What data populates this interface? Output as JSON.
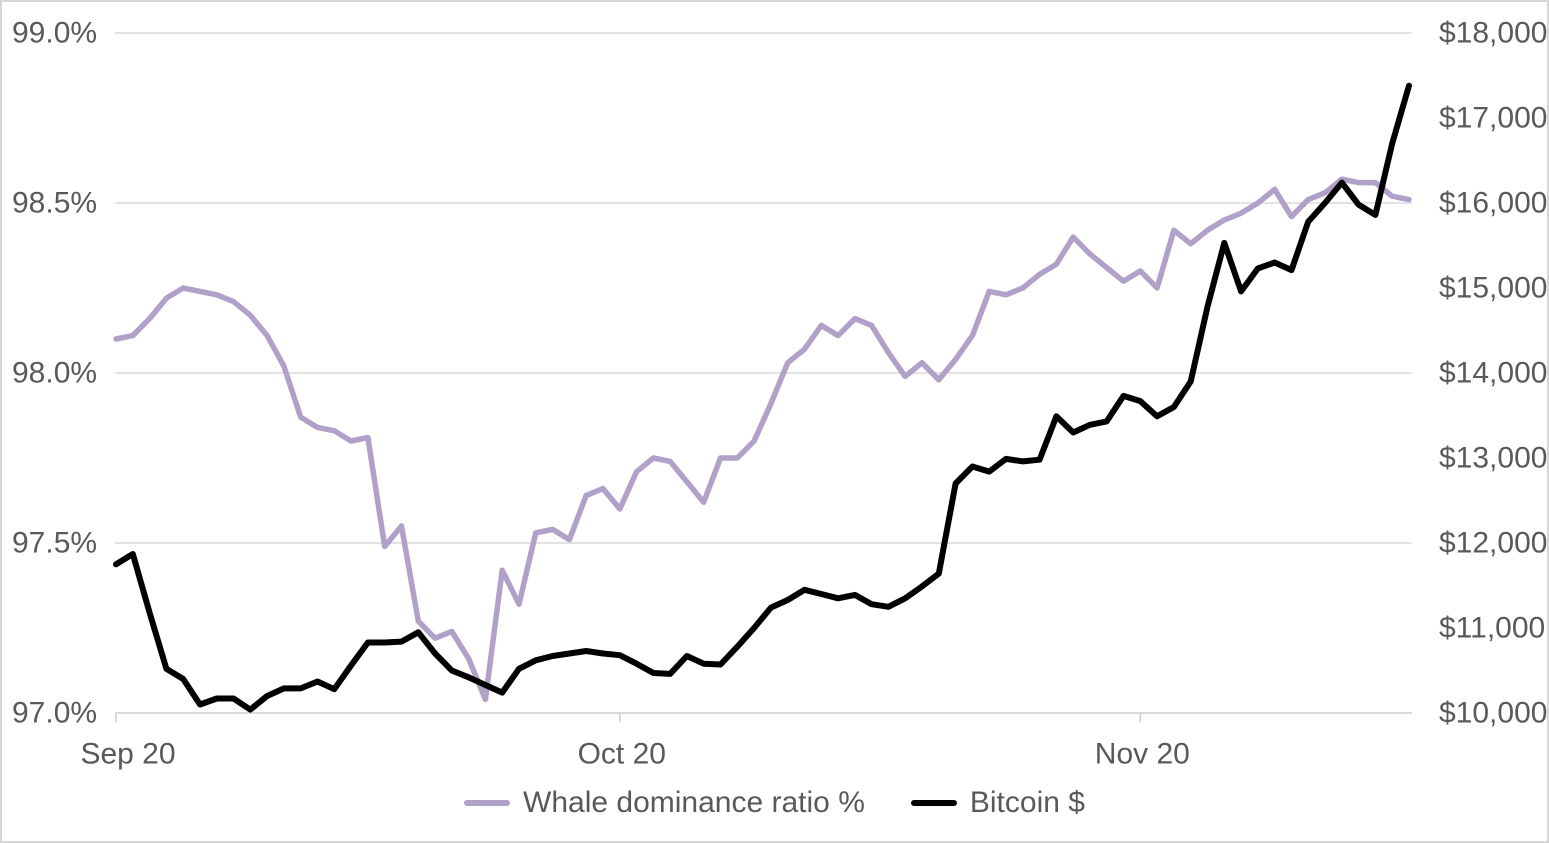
{
  "chart_data": {
    "type": "line",
    "title": "",
    "x_axis": {
      "tick_labels": [
        "Sep 20",
        "Oct 20",
        "Nov 20"
      ],
      "tick_day_index": [
        0,
        30,
        61
      ],
      "points_count": 78
    },
    "y_axis_left": {
      "unit": "%",
      "min": 97.0,
      "max": 99.0,
      "tick_labels": [
        "99.0%",
        "98.5%",
        "98.0%",
        "97.5%",
        "97.0%"
      ],
      "tick_values": [
        99.0,
        98.5,
        98.0,
        97.5,
        97.0
      ]
    },
    "y_axis_right": {
      "unit": "$",
      "min": 10000,
      "max": 18000,
      "tick_labels": [
        "$18,000",
        "$17,000",
        "$16,000",
        "$15,000",
        "$14,000",
        "$13,000",
        "$12,000",
        "$11,000",
        "$10,000"
      ],
      "tick_values": [
        18000,
        17000,
        16000,
        15000,
        14000,
        13000,
        12000,
        11000,
        10000
      ]
    },
    "grid": true,
    "legend_position": "bottom",
    "series": [
      {
        "name": "Whale dominance ratio %",
        "axis": "left",
        "color": "#b1a0c7",
        "values": [
          98.1,
          98.11,
          98.16,
          98.22,
          98.25,
          98.24,
          98.23,
          98.21,
          98.17,
          98.11,
          98.02,
          97.87,
          97.84,
          97.83,
          97.8,
          97.81,
          97.49,
          97.55,
          97.27,
          97.22,
          97.24,
          97.16,
          97.04,
          97.42,
          97.32,
          97.53,
          97.54,
          97.51,
          97.64,
          97.66,
          97.6,
          97.71,
          97.75,
          97.74,
          97.68,
          97.62,
          97.75,
          97.75,
          97.8,
          97.91,
          98.03,
          98.07,
          98.14,
          98.11,
          98.16,
          98.14,
          98.06,
          97.99,
          98.03,
          97.98,
          98.04,
          98.11,
          98.24,
          98.23,
          98.25,
          98.29,
          98.32,
          98.4,
          98.35,
          98.31,
          98.27,
          98.3,
          98.25,
          98.42,
          98.38,
          98.42,
          98.45,
          98.47,
          98.5,
          98.54,
          98.46,
          98.51,
          98.53,
          98.57,
          98.56,
          98.56,
          98.52,
          98.51
        ]
      },
      {
        "name": "Bitcoin $",
        "axis": "right",
        "color": "#000000",
        "values": [
          11750,
          11870,
          11180,
          10520,
          10400,
          10100,
          10170,
          10170,
          10040,
          10200,
          10290,
          10290,
          10370,
          10280,
          10560,
          10830,
          10830,
          10840,
          10950,
          10700,
          10500,
          10420,
          10330,
          10240,
          10520,
          10620,
          10670,
          10700,
          10730,
          10700,
          10680,
          10580,
          10470,
          10460,
          10670,
          10580,
          10570,
          10780,
          11000,
          11240,
          11330,
          11450,
          11400,
          11350,
          11390,
          11280,
          11250,
          11350,
          11490,
          11640,
          12700,
          12900,
          12840,
          12990,
          12960,
          12980,
          13490,
          13300,
          13390,
          13430,
          13730,
          13670,
          13490,
          13600,
          13900,
          14780,
          15530,
          14960,
          15230,
          15300,
          15210,
          15780,
          16000,
          16240,
          15980,
          15860,
          16700,
          17380
        ]
      }
    ]
  },
  "colors": {
    "grid": "#dadada",
    "axis": "#cfcfcf",
    "text": "#595959",
    "background": "#ffffff",
    "border": "#d6d6d6"
  }
}
